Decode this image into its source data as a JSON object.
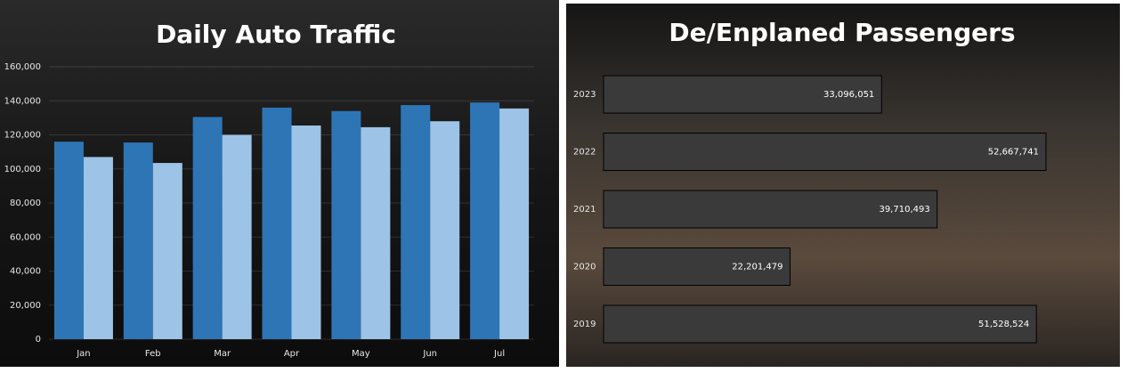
{
  "chart_data": [
    {
      "type": "bar",
      "title": "Daily Auto Traffic",
      "categories": [
        "Jan",
        "Feb",
        "Mar",
        "Apr",
        "May",
        "Jun",
        "Jul"
      ],
      "series": [
        {
          "color": "#2e75b6",
          "values": [
            116000,
            115500,
            130500,
            136000,
            134000,
            137500,
            139000
          ]
        },
        {
          "color": "#9dc3e6",
          "values": [
            107000,
            103500,
            120000,
            125500,
            124500,
            128000,
            135500
          ]
        }
      ],
      "ylim": [
        0,
        160000
      ],
      "yticks": [
        0,
        {
          "value": 20000,
          "label": "20,000"
        },
        {
          "value": 40000,
          "label": "40,000"
        },
        {
          "value": 60000,
          "label": "60,000"
        },
        {
          "value": 80000,
          "label": "80,000"
        },
        {
          "value": 100000,
          "label": "100,000"
        },
        {
          "value": 120000,
          "label": "120,000"
        },
        {
          "value": 140000,
          "label": "140,000"
        },
        {
          "value": 160000,
          "label": "160,000"
        }
      ],
      "grid": true
    },
    {
      "type": "hbar",
      "title": "De/Enplaned Passengers",
      "categories": [
        "2023",
        "2022",
        "2021",
        "2020",
        "2019"
      ],
      "values": [
        33096051,
        52667741,
        39710493,
        22201479,
        51528524
      ],
      "value_labels": [
        "33,096,051",
        "52,667,741",
        "39,710,493",
        "22,201,479",
        "51,528,524"
      ],
      "color": "#3a3a3a"
    }
  ]
}
